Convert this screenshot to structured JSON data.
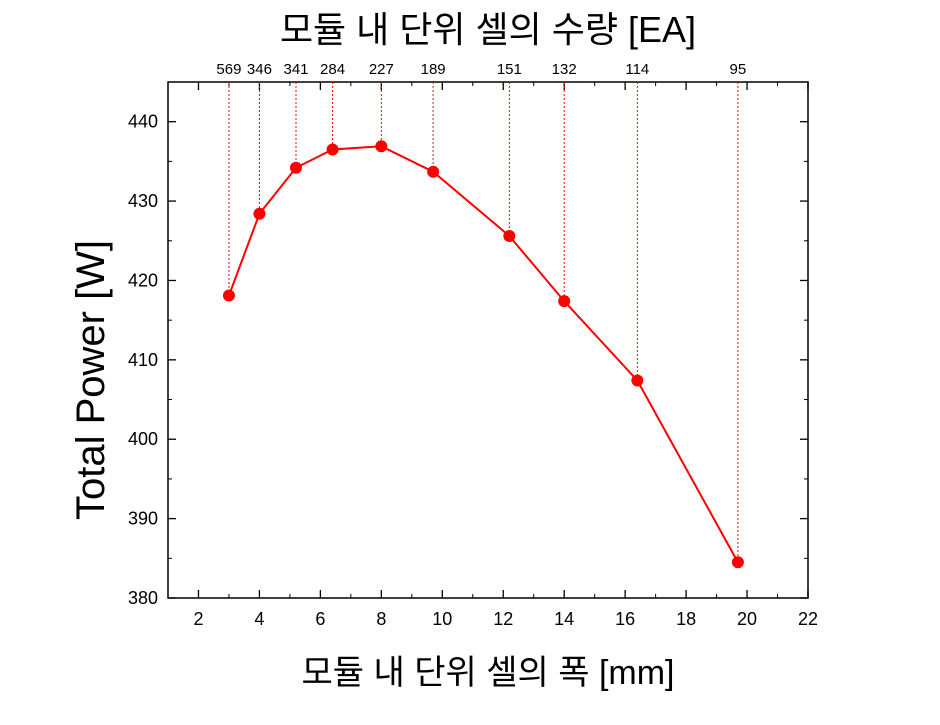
{
  "chart_data": {
    "type": "line",
    "title": "모듈 내 단위 셀의  수량 [EA]",
    "xlabel": "모듈 내 단위 셀의 폭 [mm]",
    "ylabel": "Total Power [W]",
    "xlim": [
      1,
      22
    ],
    "ylim": [
      380,
      445
    ],
    "x_ticks": [
      2,
      4,
      6,
      8,
      10,
      12,
      14,
      16,
      18,
      20,
      22
    ],
    "y_ticks": [
      380,
      390,
      400,
      410,
      420,
      430,
      440
    ],
    "grid": false,
    "legend": "none",
    "series": [
      {
        "color": "#ff0000",
        "x": [
          3.0,
          4.0,
          5.2,
          6.4,
          8.0,
          9.7,
          12.2,
          14.0,
          16.4,
          19.7
        ],
        "y": [
          418.1,
          428.4,
          434.2,
          436.5,
          436.9,
          433.7,
          425.6,
          417.4,
          407.4,
          384.5
        ]
      }
    ],
    "top_annotations": [
      "569",
      "346",
      "341",
      "284",
      "227",
      "189",
      "151",
      "132",
      "114",
      "95"
    ]
  }
}
